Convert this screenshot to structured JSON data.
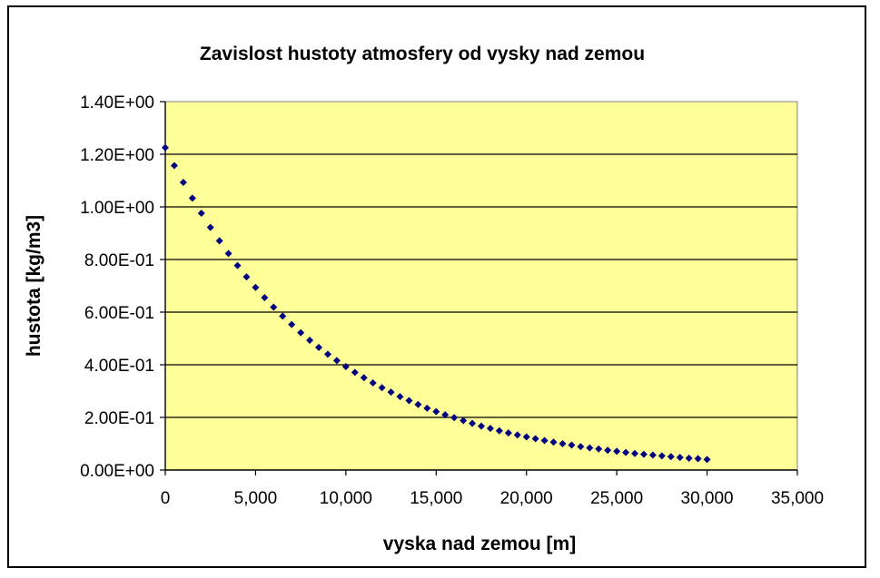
{
  "chart_data": {
    "type": "scatter",
    "title": "Zavislost hustoty atmosfery od vysky nad zemou",
    "xlabel": "vyska nad zemou [m]",
    "ylabel": "hustota [kg/m3]",
    "xlim": [
      0,
      35000
    ],
    "ylim": [
      0,
      1.4
    ],
    "x_ticks": [
      0,
      5000,
      10000,
      15000,
      20000,
      25000,
      30000,
      35000
    ],
    "x_tick_labels": [
      "0",
      "5,000",
      "10,000",
      "15,000",
      "20,000",
      "25,000",
      "30,000",
      "35,000"
    ],
    "y_ticks": [
      0,
      0.2,
      0.4,
      0.6,
      0.8,
      1.0,
      1.2,
      1.4
    ],
    "y_tick_labels": [
      "0.00E+00",
      "2.00E-01",
      "4.00E-01",
      "6.00E-01",
      "8.00E-01",
      "1.00E+00",
      "1.20E+00",
      "1.40E+00"
    ],
    "grid": "horizontal",
    "legend": "none",
    "colors": {
      "plot_background": "#ffff99",
      "marker": "#000080",
      "gridline": "#000000"
    },
    "x": [
      0,
      500,
      1000,
      1500,
      2000,
      2500,
      3000,
      3500,
      4000,
      4500,
      5000,
      5500,
      6000,
      6500,
      7000,
      7500,
      8000,
      8500,
      9000,
      9500,
      10000,
      10500,
      11000,
      11500,
      12000,
      12500,
      13000,
      13500,
      14000,
      14500,
      15000,
      15500,
      16000,
      16500,
      17000,
      17500,
      18000,
      18500,
      19000,
      19500,
      20000,
      20500,
      21000,
      21500,
      22000,
      22500,
      23000,
      23500,
      24000,
      24500,
      25000,
      25500,
      26000,
      26500,
      27000,
      27500,
      28000,
      28500,
      29000,
      29500,
      30000
    ],
    "y": [
      1.225,
      1.157,
      1.093,
      1.033,
      0.976,
      0.922,
      0.871,
      0.823,
      0.777,
      0.734,
      0.694,
      0.655,
      0.619,
      0.585,
      0.553,
      0.522,
      0.493,
      0.466,
      0.44,
      0.416,
      0.393,
      0.371,
      0.351,
      0.331,
      0.313,
      0.296,
      0.279,
      0.264,
      0.249,
      0.235,
      0.222,
      0.21,
      0.199,
      0.188,
      0.177,
      0.167,
      0.158,
      0.149,
      0.141,
      0.133,
      0.126,
      0.119,
      0.112,
      0.106,
      0.1,
      0.095,
      0.089,
      0.084,
      0.08,
      0.075,
      0.071,
      0.067,
      0.063,
      0.06,
      0.057,
      0.054,
      0.051,
      0.048,
      0.045,
      0.043,
      0.04
    ]
  }
}
